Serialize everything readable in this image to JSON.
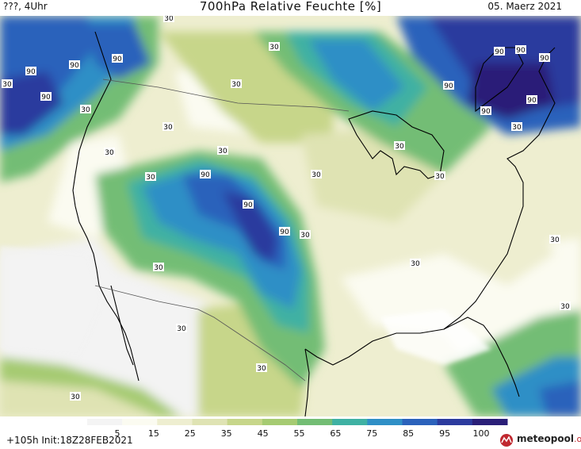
{
  "header": {
    "left": "???, 4Uhr",
    "title": "700hPa Relative Feuchte [%]",
    "date": "05. Maerz 2021"
  },
  "footer": {
    "run": "+105h  Init:18Z28FEB2021",
    "logo_name": "meteopool",
    "logo_domain": ".org"
  },
  "legend": {
    "ticks": [
      "5",
      "15",
      "25",
      "35",
      "45",
      "55",
      "65",
      "75",
      "85",
      "95",
      "100"
    ],
    "colors": [
      "#f4f4f4",
      "#fbfbf1",
      "#eeeed0",
      "#dfe3b3",
      "#c7d68a",
      "#a6cb72",
      "#73bd74",
      "#3fb1a3",
      "#2f8fc6",
      "#2b62bb",
      "#2c3b9e",
      "#2a1f78"
    ]
  },
  "contour_labels": [
    "30",
    "90"
  ]
}
